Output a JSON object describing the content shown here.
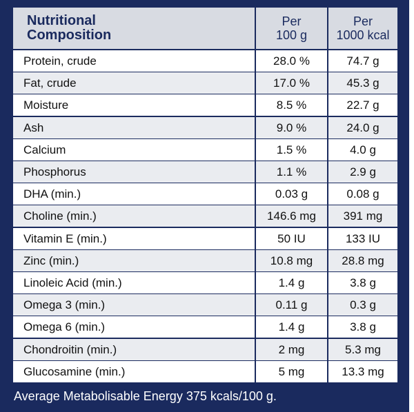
{
  "table": {
    "header": {
      "title_line1": "Nutritional",
      "title_line2": "Composition",
      "col1_line1": "Per",
      "col1_line2": "100 g",
      "col2_line1": "Per",
      "col2_line2": "1000 kcal"
    },
    "rows": [
      {
        "name": "Protein, crude",
        "per100g": "28.0 %",
        "per1000kcal": "74.7 g"
      },
      {
        "name": "Fat, crude",
        "per100g": "17.0 %",
        "per1000kcal": "45.3 g"
      },
      {
        "name": "Moisture",
        "per100g": "8.5 %",
        "per1000kcal": "22.7 g"
      },
      {
        "name": "Ash",
        "per100g": "9.0 %",
        "per1000kcal": "24.0 g"
      },
      {
        "name": "Calcium",
        "per100g": "1.5 %",
        "per1000kcal": "4.0 g"
      },
      {
        "name": "Phosphorus",
        "per100g": "1.1 %",
        "per1000kcal": "2.9 g"
      },
      {
        "name": "DHA (min.)",
        "per100g": "0.03 g",
        "per1000kcal": "0.08 g"
      },
      {
        "name": "Choline (min.)",
        "per100g": "146.6 mg",
        "per1000kcal": "391 mg"
      },
      {
        "name": "Vitamin E (min.)",
        "per100g": "50 IU",
        "per1000kcal": "133 IU"
      },
      {
        "name": "Zinc (min.)",
        "per100g": "10.8 mg",
        "per1000kcal": "28.8 mg"
      },
      {
        "name": "Linoleic Acid (min.)",
        "per100g": "1.4 g",
        "per1000kcal": "3.8 g"
      },
      {
        "name": "Omega 3 (min.)",
        "per100g": "0.11 g",
        "per1000kcal": "0.3 g"
      },
      {
        "name": "Omega 6 (min.)",
        "per100g": "1.4 g",
        "per1000kcal": "3.8 g"
      },
      {
        "name": "Chondroitin (min.)",
        "per100g": "2 mg",
        "per1000kcal": "5.3 mg"
      },
      {
        "name": "Glucosamine (min.)",
        "per100g": "5 mg",
        "per1000kcal": "13.3 mg"
      }
    ]
  },
  "footer": {
    "text": "Average Metabolisable Energy 375 kcals/100 g."
  },
  "colors": {
    "navy": "#1a2a5e",
    "header_bg": "#d8dbe2",
    "row_alt": "#eaecf0"
  }
}
